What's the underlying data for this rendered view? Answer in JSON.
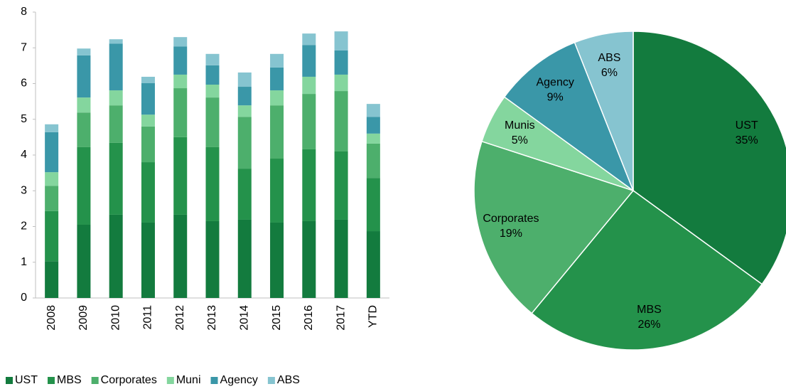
{
  "chart_data": [
    {
      "type": "bar",
      "stacked": true,
      "categories": [
        "2008",
        "2009",
        "2010",
        "2011",
        "2012",
        "2013",
        "2014",
        "2015",
        "2016",
        "2017",
        "YTD"
      ],
      "series": [
        {
          "name": "UST",
          "color": "#137b3e",
          "values": [
            1.03,
            2.05,
            2.33,
            2.11,
            2.33,
            2.15,
            2.19,
            2.11,
            2.15,
            2.19,
            1.87
          ]
        },
        {
          "name": "MBS",
          "color": "#24924b",
          "values": [
            1.4,
            2.17,
            2.01,
            1.69,
            2.17,
            2.07,
            1.43,
            1.79,
            2.01,
            1.91,
            1.49
          ]
        },
        {
          "name": "Corporates",
          "color": "#4daf6c",
          "values": [
            0.71,
            0.97,
            1.05,
            1.0,
            1.37,
            1.39,
            1.45,
            1.49,
            1.55,
            1.69,
            0.96
          ]
        },
        {
          "name": "Muni",
          "color": "#84d69e",
          "values": [
            0.38,
            0.42,
            0.42,
            0.33,
            0.38,
            0.36,
            0.32,
            0.42,
            0.48,
            0.46,
            0.28
          ]
        },
        {
          "name": "Agency",
          "color": "#3a97a8",
          "values": [
            1.12,
            1.18,
            1.31,
            0.88,
            0.79,
            0.54,
            0.52,
            0.64,
            0.89,
            0.68,
            0.47
          ]
        },
        {
          "name": "ABS",
          "color": "#86c4d0",
          "values": [
            0.22,
            0.19,
            0.12,
            0.18,
            0.26,
            0.32,
            0.4,
            0.38,
            0.32,
            0.53,
            0.36
          ]
        }
      ],
      "ylim": [
        0,
        8
      ],
      "yticks": [
        0,
        1,
        2,
        3,
        4,
        5,
        6,
        7,
        8
      ],
      "legend": "bottom"
    },
    {
      "type": "pie",
      "categories": [
        "UST",
        "MBS",
        "Corporates",
        "Munis",
        "Agency",
        "ABS"
      ],
      "values": [
        35,
        26,
        19,
        5,
        9,
        6
      ],
      "value_labels": [
        "35%",
        "26%",
        "19%",
        "5%",
        "9%",
        "6%"
      ],
      "colors": [
        "#137b3e",
        "#24924b",
        "#4daf6c",
        "#84d69e",
        "#3a97a8",
        "#86c4d0"
      ]
    }
  ]
}
